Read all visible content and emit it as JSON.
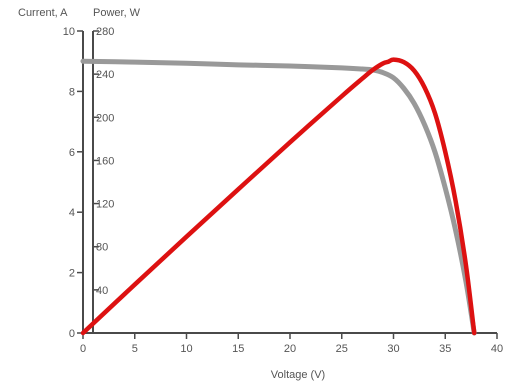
{
  "chart_data": {
    "type": "line",
    "xlabel": "Voltage (V)",
    "y_left_label": "Current, A",
    "y_right_label": "Power, W",
    "xlim": [
      0,
      40
    ],
    "ylim_current": [
      0,
      10
    ],
    "ylim_power": [
      0,
      280
    ],
    "x_ticks": [
      0,
      5,
      10,
      15,
      20,
      25,
      30,
      35,
      40
    ],
    "current_ticks": [
      0,
      2,
      4,
      6,
      8,
      10
    ],
    "power_ticks": [
      40,
      80,
      120,
      160,
      200,
      240,
      280
    ],
    "grid": false,
    "series": [
      {
        "axis": "current",
        "color": "#999999",
        "x": [
          0,
          5,
          10,
          15,
          20,
          25,
          27,
          28,
          29,
          30,
          31,
          32,
          33,
          34,
          35,
          36,
          37,
          37.8
        ],
        "y": [
          9.0,
          8.97,
          8.93,
          8.88,
          8.84,
          8.78,
          8.74,
          8.71,
          8.62,
          8.45,
          8.1,
          7.6,
          6.9,
          6.0,
          4.8,
          3.4,
          1.7,
          0
        ]
      },
      {
        "axis": "power",
        "color": "#dd1111",
        "x": [
          0,
          5,
          10,
          15,
          20,
          25,
          27,
          28,
          29,
          29.5,
          30,
          31,
          32,
          33,
          34,
          35,
          36,
          37,
          37.8
        ],
        "y": [
          0,
          44.9,
          89.3,
          133.2,
          176.8,
          219.5,
          236.0,
          243.9,
          250.0,
          251.5,
          253.5,
          251.1,
          243.2,
          227.7,
          204.0,
          168.0,
          122.4,
          62.9,
          0
        ]
      }
    ]
  }
}
